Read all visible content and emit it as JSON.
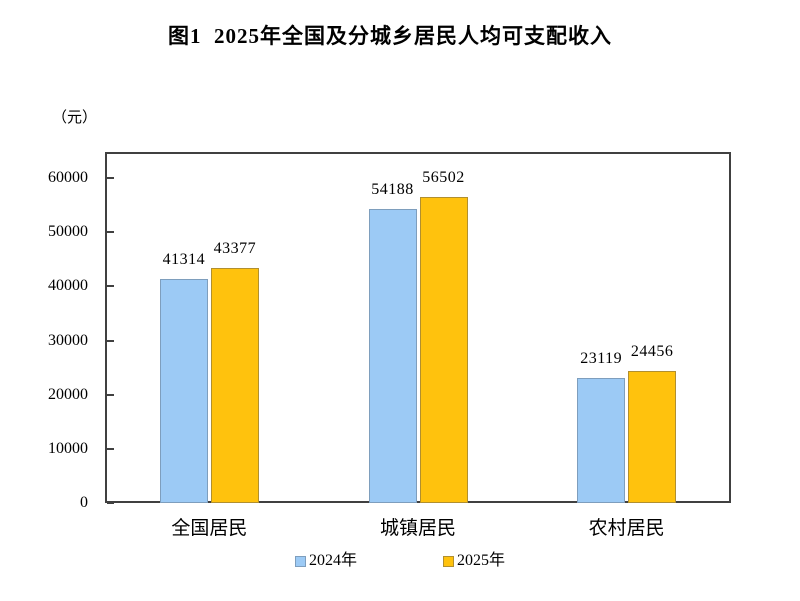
{
  "page": {
    "background_color": "#ffffff",
    "text_color": "#000000",
    "frame_color": "#404040"
  },
  "header": {
    "title": "图1  2025年全国及分城乡居民人均可支配收入"
  },
  "chart_data": {
    "type": "bar",
    "title": "图1  2025年全国及分城乡居民人均可支配收入",
    "unit_label": "（元）",
    "categories": [
      "全国居民",
      "城镇居民",
      "农村居民"
    ],
    "series": [
      {
        "name": "2024年",
        "values": [
          41314,
          54188,
          23119
        ],
        "fill_color": "#9CCAF5",
        "border_color": "#7E9EBD"
      },
      {
        "name": "2025年",
        "values": [
          43377,
          56502,
          24456
        ],
        "fill_color": "#FFC20D",
        "border_color": "#B18F2F"
      }
    ],
    "xlabel": "",
    "ylabel": "（元）",
    "ylim": [
      0,
      65000
    ],
    "yticks": [
      0,
      10000,
      20000,
      30000,
      40000,
      50000,
      60000
    ],
    "grid": false,
    "data_labels": true,
    "legend_position": "bottom"
  }
}
